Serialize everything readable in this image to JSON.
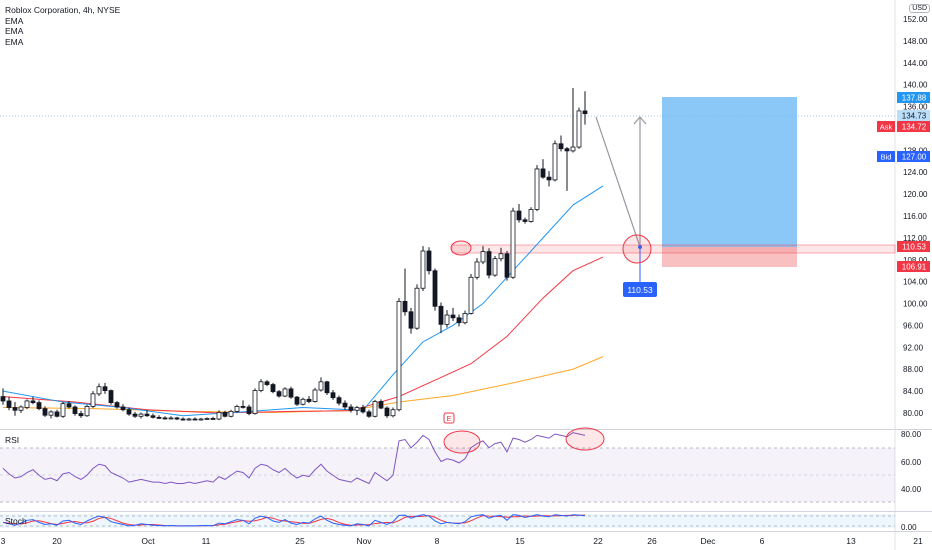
{
  "header": {
    "title": "Roblox Corporation, 4h, NYSE",
    "indicators": [
      "EMA",
      "EMA",
      "EMA"
    ],
    "currency": "USD"
  },
  "price_axis": {
    "ticks": [
      "152.00",
      "148.00",
      "144.00",
      "140.00",
      "136.00",
      "132.00",
      "128.00",
      "124.00",
      "120.00",
      "116.00",
      "112.00",
      "108.00",
      "104.00",
      "100.00",
      "96.00",
      "92.00",
      "88.00",
      "84.00",
      "80.00"
    ],
    "tags": {
      "last_high": "137.88",
      "current": "134.73",
      "ask_label": "Ask",
      "ask": "134.72",
      "bid_label": "Bid",
      "bid": "127.00",
      "entry": "110.53",
      "stop": "106.91"
    }
  },
  "marker": {
    "label": "110.53",
    "icon": "earnings-e-icon",
    "icon_text": "E"
  },
  "rsi": {
    "label": "RSI",
    "ticks": [
      "80.00",
      "60.00",
      "40.00"
    ]
  },
  "stoch": {
    "label": "Stoch",
    "ticks": [
      "0.00"
    ]
  },
  "time_axis": [
    "3",
    "20",
    "Oct",
    "11",
    "25",
    "Nov",
    "8",
    "15",
    "22",
    "26",
    "Dec",
    "6",
    "13",
    "21"
  ],
  "colors": {
    "up": "#ffffff",
    "down": "#131722",
    "ema_fast": "#2196f3",
    "ema_mid": "#f23645",
    "ema_slow": "#ffa726",
    "target_zone": "#64b5f6",
    "stop_zone": "#f7b9b9",
    "rsi_line": "#7e57c2",
    "stoch_k": "#2962ff",
    "stoch_d": "#f23645"
  },
  "chart_data": {
    "type": "candlestick",
    "symbol": "RBLX",
    "timeframe": "4h",
    "candles": [
      [
        83,
        84.5,
        81.5,
        82.2
      ],
      [
        82.2,
        83.0,
        80.5,
        81.0
      ],
      [
        81,
        82,
        79.5,
        80.5
      ],
      [
        80.5,
        81.4,
        80,
        81.1
      ],
      [
        81,
        82.5,
        80.7,
        82.2
      ],
      [
        82.2,
        83,
        81.6,
        81.9
      ],
      [
        81.9,
        82.3,
        80.5,
        80.8
      ],
      [
        80.8,
        81.2,
        79.3,
        79.6
      ],
      [
        79.6,
        80.5,
        79,
        80.2
      ],
      [
        80.2,
        80.6,
        79.2,
        79.4
      ],
      [
        79.4,
        82,
        79.1,
        81.7
      ],
      [
        81.7,
        82.2,
        80.8,
        81.1
      ],
      [
        81.1,
        81.4,
        79.5,
        79.9
      ],
      [
        79.9,
        80.4,
        79.1,
        79.5
      ],
      [
        79.5,
        81.5,
        79.3,
        81.2
      ],
      [
        81.2,
        84,
        80.9,
        83.5
      ],
      [
        83.5,
        85.4,
        83.1,
        84.8
      ],
      [
        84.8,
        85.5,
        83.5,
        84.1
      ],
      [
        84.1,
        84.3,
        81.5,
        81.9
      ],
      [
        81.9,
        82.2,
        80.8,
        81.1
      ],
      [
        81.1,
        81.6,
        80.3,
        80.6
      ],
      [
        80.6,
        81,
        79.5,
        79.8
      ],
      [
        79.8,
        80.2,
        79.1,
        79.4
      ],
      [
        79.4,
        80.1,
        79,
        79.8
      ],
      [
        79.8,
        80.6,
        79.3,
        79.5
      ],
      [
        79.5,
        79.9,
        79,
        79.2
      ],
      [
        79.2,
        79.6,
        78.9,
        79.1
      ],
      [
        79.1,
        79.4,
        78.8,
        79
      ],
      [
        79,
        79.4,
        78.8,
        79.1
      ],
      [
        79.1,
        79.3,
        78.7,
        78.9
      ],
      [
        78.9,
        79.2,
        78.6,
        78.8
      ],
      [
        78.8,
        79.1,
        78.6,
        78.9
      ],
      [
        78.9,
        79.2,
        78.7,
        78.8
      ],
      [
        78.8,
        79.1,
        78.6,
        78.9
      ],
      [
        78.9,
        79.2,
        78.7,
        79
      ],
      [
        79,
        79.3,
        78.8,
        78.9
      ],
      [
        78.9,
        80.5,
        78.7,
        80.1
      ],
      [
        80.1,
        80.4,
        79.2,
        79.4
      ],
      [
        79.4,
        80.6,
        79.2,
        80.3
      ],
      [
        80.3,
        81.5,
        80.1,
        81.2
      ],
      [
        81.2,
        82.3,
        80.8,
        81.1
      ],
      [
        81.1,
        81.5,
        79.6,
        79.9
      ],
      [
        79.9,
        84.5,
        79.7,
        84.1
      ],
      [
        84.1,
        86.2,
        83.8,
        85.7
      ],
      [
        85.7,
        86,
        84.9,
        85.2
      ],
      [
        85.2,
        85.5,
        83.6,
        83.9
      ],
      [
        83.9,
        84.2,
        82.8,
        83.1
      ],
      [
        83.1,
        84.7,
        82.9,
        84.4
      ],
      [
        84.4,
        84.8,
        82.6,
        82.9
      ],
      [
        82.9,
        83.1,
        81.3,
        81.6
      ],
      [
        81.6,
        82.8,
        81.4,
        82.5
      ],
      [
        82.5,
        83.1,
        81.8,
        82.1
      ],
      [
        82.1,
        84.6,
        81.9,
        84.2
      ],
      [
        84.2,
        86.5,
        83.9,
        85.7
      ],
      [
        85.7,
        85.9,
        83.3,
        83.7
      ],
      [
        83.7,
        84.2,
        82.4,
        82.8
      ],
      [
        82.8,
        83.2,
        81.4,
        81.8
      ],
      [
        81.8,
        82.3,
        80.6,
        81.1
      ],
      [
        81.1,
        81.6,
        80.1,
        80.5
      ],
      [
        80.5,
        81.3,
        79.6,
        81.0
      ],
      [
        81,
        81.5,
        79.9,
        80.2
      ],
      [
        80.2,
        80.6,
        79.1,
        79.4
      ],
      [
        79.4,
        82.4,
        79.2,
        82.1
      ],
      [
        82.1,
        82.5,
        80.7,
        80.9
      ],
      [
        80.9,
        81.2,
        79.1,
        79.5
      ],
      [
        79.5,
        81,
        79.2,
        80.6
      ],
      [
        80.6,
        101,
        80.3,
        100.4
      ],
      [
        100.4,
        106.4,
        97.8,
        98.5
      ],
      [
        98.5,
        99.2,
        94.5,
        95.5
      ],
      [
        95.5,
        103.5,
        95.2,
        102.8
      ],
      [
        102.8,
        110.5,
        102.3,
        109.6
      ],
      [
        109.6,
        110.3,
        105.3,
        106
      ],
      [
        106,
        106.4,
        98.7,
        99.5
      ],
      [
        99.5,
        100.2,
        94.6,
        96.2
      ],
      [
        96.2,
        98.8,
        95.6,
        97.9
      ],
      [
        97.9,
        99.2,
        96.8,
        97.4
      ],
      [
        97.4,
        98,
        95.8,
        96.5
      ],
      [
        96.5,
        98.7,
        96.2,
        98.2
      ],
      [
        98.2,
        105.4,
        98,
        104.8
      ],
      [
        104.8,
        108.3,
        104.4,
        107.6
      ],
      [
        107.6,
        110.5,
        107.2,
        109.5
      ],
      [
        109.5,
        110.1,
        104.6,
        105.2
      ],
      [
        105.2,
        108.7,
        104.9,
        108.2
      ],
      [
        108.2,
        110.2,
        107.7,
        109.1
      ],
      [
        109.1,
        109.6,
        104.2,
        104.8
      ],
      [
        104.8,
        117.5,
        104.5,
        116.9
      ],
      [
        116.9,
        118.2,
        114.8,
        115.3
      ],
      [
        115.3,
        115.7,
        114.6,
        115.0
      ],
      [
        115.0,
        117.6,
        114.8,
        117.2
      ],
      [
        117.2,
        125.3,
        116.9,
        124.6
      ],
      [
        124.6,
        126.4,
        122.8,
        123.1
      ],
      [
        123.1,
        124.2,
        121.4,
        122.6
      ],
      [
        122.6,
        129.8,
        122.3,
        129.2
      ],
      [
        129.2,
        130.7,
        127.8,
        128.3
      ],
      [
        128.3,
        128.6,
        120.6,
        127.9
      ],
      [
        127.9,
        139.4,
        127.6,
        128.6
      ],
      [
        128.6,
        135.8,
        128.3,
        135.2
      ],
      [
        135.2,
        138.8,
        132.7,
        134.7
      ]
    ],
    "ema_fast": [
      [
        65,
        87
      ],
      [
        70,
        93
      ],
      [
        75,
        96
      ],
      [
        80,
        100
      ],
      [
        85,
        106
      ],
      [
        90,
        112
      ],
      [
        95,
        118
      ],
      [
        100,
        121.5
      ]
    ],
    "ema_mid": [
      [
        66,
        83
      ],
      [
        72,
        86
      ],
      [
        78,
        89
      ],
      [
        84,
        94
      ],
      [
        90,
        101
      ],
      [
        95,
        106
      ],
      [
        100,
        108.5
      ]
    ],
    "ema_slow": [
      [
        66,
        82
      ],
      [
        75,
        83.2
      ],
      [
        85,
        85.5
      ],
      [
        95,
        88
      ],
      [
        100,
        90.3
      ]
    ],
    "position": {
      "type": "long",
      "entry": 110.53,
      "target": 137.88,
      "stop": 106.91
    },
    "projection": {
      "from_price": 134.7,
      "mid_price": 110.53,
      "to_price": 134.0
    },
    "rsi_values": [
      55,
      51,
      48,
      49,
      52,
      54,
      50,
      47,
      48,
      46,
      51,
      52,
      49,
      47,
      50,
      55,
      58,
      57,
      52,
      50,
      48,
      45,
      46,
      47,
      46,
      45,
      45,
      44,
      45,
      44,
      44,
      45,
      44,
      45,
      46,
      45,
      49,
      47,
      50,
      53,
      52,
      48,
      55,
      58,
      57,
      54,
      52,
      55,
      51,
      48,
      50,
      49,
      54,
      58,
      53,
      50,
      47,
      46,
      45,
      48,
      46,
      44,
      52,
      49,
      46,
      50,
      75,
      76,
      70,
      74,
      79,
      76,
      67,
      60,
      62,
      61,
      59,
      62,
      70,
      73,
      75,
      70,
      73,
      74,
      67,
      77,
      76,
      74,
      76,
      79,
      78,
      77,
      80,
      79,
      78,
      81,
      80,
      79
    ],
    "stoch_values": [
      40,
      30,
      20,
      35,
      55,
      60,
      40,
      25,
      30,
      20,
      50,
      55,
      35,
      25,
      50,
      70,
      85,
      75,
      45,
      35,
      25,
      15,
      20,
      30,
      25,
      20,
      18,
      15,
      18,
      15,
      14,
      16,
      15,
      17,
      18,
      16,
      35,
      30,
      45,
      60,
      55,
      30,
      70,
      85,
      75,
      50,
      40,
      60,
      35,
      25,
      40,
      35,
      65,
      85,
      55,
      35,
      25,
      20,
      15,
      30,
      25,
      15,
      55,
      40,
      25,
      45,
      90,
      92,
      70,
      85,
      95,
      85,
      50,
      30,
      40,
      35,
      30,
      45,
      80,
      90,
      95,
      70,
      85,
      90,
      55,
      95,
      90,
      75,
      85,
      95,
      85,
      80,
      95,
      90,
      85,
      95,
      92,
      88
    ]
  }
}
